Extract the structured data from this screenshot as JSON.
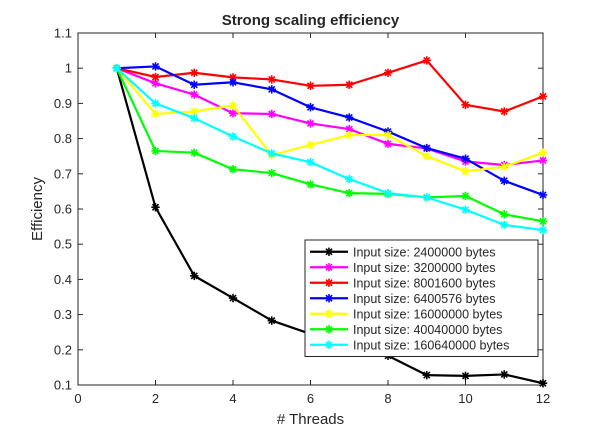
{
  "chart_data": {
    "type": "line",
    "title": "Strong scaling efficiency",
    "xlabel": "# Threads",
    "ylabel": "Efficiency",
    "xlim": [
      0,
      12
    ],
    "ylim": [
      0.1,
      1.1
    ],
    "xticks": [
      0,
      2,
      4,
      6,
      8,
      10,
      12
    ],
    "yticks": [
      0.1,
      0.2,
      0.3,
      0.4,
      0.5,
      0.6,
      0.7,
      0.8,
      0.9,
      1,
      1.1
    ],
    "grid": false,
    "legend_position": "bottom-right",
    "x": [
      1,
      2,
      3,
      4,
      5,
      6,
      7,
      8,
      9,
      10,
      11,
      12
    ],
    "series": [
      {
        "name": "Input size: 2400000 bytes",
        "color": "#000000",
        "values": [
          1.0,
          0.605,
          0.41,
          0.347,
          0.283,
          0.245,
          0.198,
          0.183,
          0.128,
          0.126,
          0.13,
          0.105
        ]
      },
      {
        "name": "Input size: 3200000 bytes",
        "color": "#ff00ff",
        "values": [
          1.0,
          0.957,
          0.925,
          0.872,
          0.87,
          0.843,
          0.827,
          0.785,
          0.772,
          0.735,
          0.725,
          0.738
        ]
      },
      {
        "name": "Input size: 8001600 bytes",
        "color": "#ff0000",
        "values": [
          1.0,
          0.975,
          0.987,
          0.974,
          0.968,
          0.95,
          0.953,
          0.987,
          1.022,
          0.896,
          0.877,
          0.92
        ]
      },
      {
        "name": "Input size: 6400576 bytes",
        "color": "#0000ff",
        "values": [
          1.0,
          1.005,
          0.953,
          0.96,
          0.94,
          0.889,
          0.86,
          0.82,
          0.773,
          0.743,
          0.68,
          0.64
        ]
      },
      {
        "name": "Input size: 16000000 bytes",
        "color": "#ffff00",
        "values": [
          1.0,
          0.87,
          0.877,
          0.894,
          0.753,
          0.782,
          0.81,
          0.81,
          0.75,
          0.707,
          0.72,
          0.76
        ]
      },
      {
        "name": "Input size: 40040000 bytes",
        "color": "#00ff00",
        "values": [
          1.0,
          0.765,
          0.76,
          0.713,
          0.702,
          0.67,
          0.645,
          0.643,
          0.633,
          0.637,
          0.585,
          0.565
        ]
      },
      {
        "name": "Input size: 160640000 bytes",
        "color": "#00ffff",
        "values": [
          1.0,
          0.9,
          0.858,
          0.806,
          0.758,
          0.733,
          0.685,
          0.645,
          0.633,
          0.598,
          0.555,
          0.54
        ]
      }
    ]
  }
}
